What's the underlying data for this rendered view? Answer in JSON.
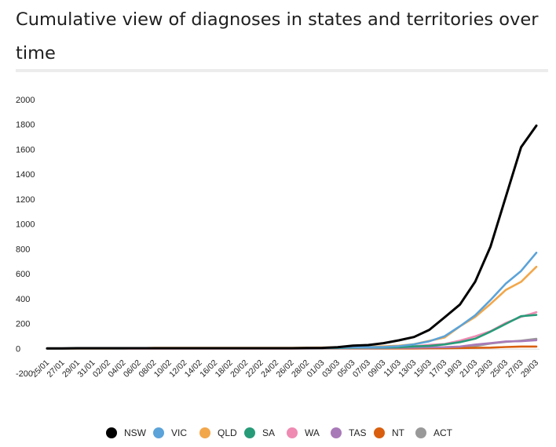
{
  "title": "Cumulative view of diagnoses in states and territories over time",
  "chart_data": {
    "type": "line",
    "title": "Cumulative view of diagnoses in states and territories over time",
    "xlabel": "",
    "ylabel": "",
    "ylim": [
      -200,
      2000
    ],
    "yticks": [
      -200,
      0,
      200,
      400,
      600,
      800,
      1000,
      1200,
      1400,
      1600,
      1800,
      2000
    ],
    "x": [
      "25/01",
      "27/01",
      "29/01",
      "31/01",
      "02/02",
      "04/02",
      "06/02",
      "08/02",
      "10/02",
      "12/02",
      "14/02",
      "16/02",
      "18/02",
      "20/02",
      "22/02",
      "24/02",
      "26/02",
      "28/02",
      "01/03",
      "03/03",
      "05/03",
      "07/03",
      "09/03",
      "11/03",
      "13/03",
      "15/03",
      "17/03",
      "19/03",
      "21/03",
      "23/03",
      "25/03",
      "27/03",
      "29/03"
    ],
    "grid": false,
    "legend": "bottom",
    "series": [
      {
        "name": "NSW",
        "color": "#000000",
        "values": [
          0,
          0,
          2,
          2,
          2,
          2,
          2,
          2,
          2,
          2,
          2,
          2,
          2,
          2,
          2,
          2,
          2,
          3,
          4,
          9,
          22,
          27,
          42,
          65,
          92,
          149,
          250,
          353,
          536,
          818,
          1219,
          1617,
          1791
        ]
      },
      {
        "name": "VIC",
        "color": "#5ba3d9",
        "values": [
          0,
          0,
          1,
          1,
          1,
          1,
          1,
          1,
          1,
          1,
          1,
          1,
          1,
          1,
          1,
          1,
          1,
          2,
          3,
          6,
          9,
          10,
          12,
          18,
          33,
          57,
          98,
          178,
          266,
          389,
          521,
          622,
          769
        ]
      },
      {
        "name": "QLD",
        "color": "#f2a74b",
        "values": [
          0,
          0,
          0,
          0,
          0,
          1,
          2,
          5,
          5,
          5,
          5,
          5,
          5,
          5,
          5,
          5,
          5,
          6,
          7,
          9,
          11,
          13,
          16,
          22,
          34,
          61,
          88,
          177,
          253,
          357,
          470,
          535,
          656
        ]
      },
      {
        "name": "SA",
        "color": "#279b78",
        "values": [
          0,
          0,
          0,
          0,
          0,
          0,
          2,
          2,
          2,
          2,
          2,
          2,
          2,
          2,
          2,
          2,
          2,
          2,
          2,
          3,
          5,
          7,
          7,
          9,
          16,
          20,
          32,
          50,
          78,
          135,
          197,
          259,
          269
        ]
      },
      {
        "name": "WA",
        "color": "#ef8ab2",
        "values": [
          0,
          0,
          0,
          0,
          0,
          0,
          0,
          0,
          0,
          0,
          0,
          0,
          0,
          0,
          0,
          0,
          0,
          0,
          1,
          2,
          3,
          4,
          6,
          9,
          17,
          28,
          35,
          62,
          97,
          138,
          205,
          253,
          291
        ]
      },
      {
        "name": "TAS",
        "color": "#a87ab8",
        "values": [
          0,
          0,
          0,
          0,
          0,
          0,
          0,
          0,
          0,
          0,
          0,
          0,
          0,
          0,
          0,
          0,
          0,
          0,
          0,
          1,
          2,
          2,
          3,
          5,
          6,
          8,
          10,
          15,
          31,
          42,
          56,
          58,
          66
        ]
      },
      {
        "name": "NT",
        "color": "#d95f0e",
        "values": [
          0,
          0,
          0,
          0,
          0,
          0,
          0,
          0,
          0,
          0,
          0,
          0,
          0,
          0,
          0,
          0,
          0,
          0,
          0,
          0,
          0,
          0,
          0,
          0,
          0,
          1,
          1,
          3,
          4,
          6,
          11,
          15,
          15
        ]
      },
      {
        "name": "ACT",
        "color": "#999999",
        "values": [
          0,
          0,
          0,
          0,
          0,
          0,
          0,
          0,
          0,
          0,
          0,
          0,
          0,
          0,
          0,
          0,
          0,
          0,
          0,
          0,
          0,
          0,
          0,
          1,
          1,
          2,
          6,
          9,
          19,
          39,
          53,
          62,
          77
        ]
      }
    ]
  }
}
